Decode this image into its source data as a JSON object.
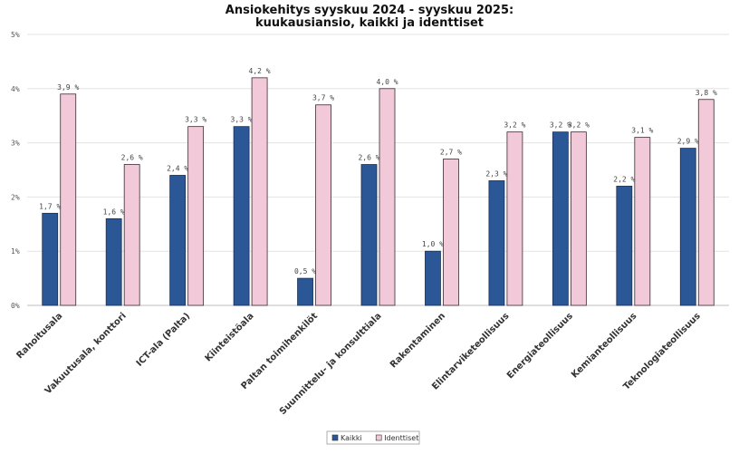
{
  "chart_data": {
    "type": "bar",
    "title_lines": [
      "Ansiokehitys syyskuu 2024 - syyskuu 2025:",
      "kuukausiansio, kaikki ja identtiset"
    ],
    "categories": [
      "Rahoitusala",
      "Vakuutusala, konttori",
      "ICT-ala (Palta)",
      "Kiinteistöala",
      "Paltan toimihenkilöt",
      "Suunnittelu- ja konsulttiala",
      "Rakentaminen",
      "Elintarviketeollisuus",
      "Energiateollisuus",
      "Kemianteollisuus",
      "Teknologiateollisuus"
    ],
    "series": [
      {
        "name": "Kaikki",
        "color": "#2b5797",
        "values": [
          1.7,
          1.6,
          2.4,
          3.3,
          0.5,
          2.6,
          1.0,
          2.3,
          3.2,
          2.2,
          2.9
        ],
        "labels": [
          "1,7 %",
          "1,6 %",
          "2,4 %",
          "3,3 %",
          "0,5 %",
          "2,6 %",
          "1,0 %",
          "2,3 %",
          "3,2 %",
          "2,2 %",
          "2,9 %"
        ]
      },
      {
        "name": "Identtiset",
        "color": "#f2c9d8",
        "values": [
          3.9,
          2.6,
          3.3,
          4.2,
          3.7,
          4.0,
          2.7,
          3.2,
          3.2,
          3.1,
          3.8
        ],
        "labels": [
          "3,9 %",
          "2,6 %",
          "3,3 %",
          "4,2 %",
          "3,7 %",
          "4,0 %",
          "2,7 %",
          "3,2 %",
          "3,2 %",
          "3,1 %",
          "3,8 %"
        ]
      }
    ],
    "yticks": [
      "0%",
      "1%",
      "2%",
      "3%",
      "4%",
      "5%"
    ],
    "ylim": [
      0,
      5
    ],
    "grid": true,
    "legend_position": "bottom-center"
  }
}
